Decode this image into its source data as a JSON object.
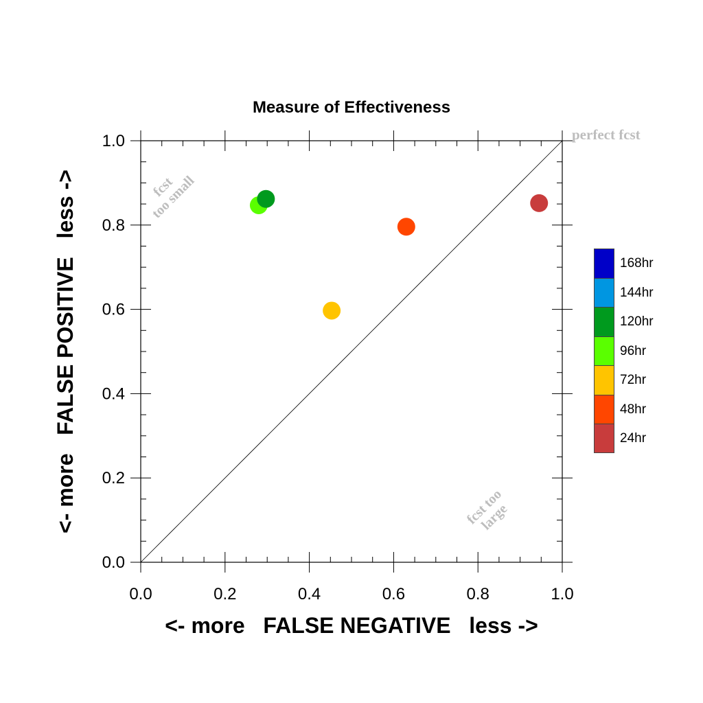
{
  "chart_data": {
    "type": "scatter",
    "title": "Measure of Effectiveness",
    "xlabel": "<- more   FALSE NEGATIVE   less ->",
    "ylabel": "<- more   FALSE POSITIVE   less ->",
    "xlim": [
      0.0,
      1.0
    ],
    "ylim": [
      0.0,
      1.0
    ],
    "x_ticks": [
      "0.0",
      "0.2",
      "0.4",
      "0.6",
      "0.8",
      "1.0"
    ],
    "y_ticks": [
      "0.0",
      "0.2",
      "0.4",
      "0.6",
      "0.8",
      "1.0"
    ],
    "grid": false,
    "diagonal_line": true,
    "annotations": {
      "top_left": [
        "fcst",
        "too small"
      ],
      "bottom_right": [
        "fcst too",
        "large"
      ],
      "top_right": "perfect fcst"
    },
    "legend_position": "right",
    "legend": [
      {
        "label": "168hr",
        "color": "#0000c8"
      },
      {
        "label": "144hr",
        "color": "#0096e1"
      },
      {
        "label": "120hr",
        "color": "#009a1e"
      },
      {
        "label": "96hr",
        "color": "#5aff00"
      },
      {
        "label": "72hr",
        "color": "#ffc400"
      },
      {
        "label": "48hr",
        "color": "#ff4600"
      },
      {
        "label": "24hr",
        "color": "#c83c3c"
      }
    ],
    "points": [
      {
        "series": "96hr",
        "x": 0.28,
        "y": 0.847,
        "color": "#5aff00"
      },
      {
        "series": "120hr",
        "x": 0.297,
        "y": 0.862,
        "color": "#009a1e"
      },
      {
        "series": "72hr",
        "x": 0.453,
        "y": 0.597,
        "color": "#ffc400"
      },
      {
        "series": "48hr",
        "x": 0.63,
        "y": 0.796,
        "color": "#ff4600"
      },
      {
        "series": "24hr",
        "x": 0.945,
        "y": 0.852,
        "color": "#c83c3c"
      }
    ]
  }
}
